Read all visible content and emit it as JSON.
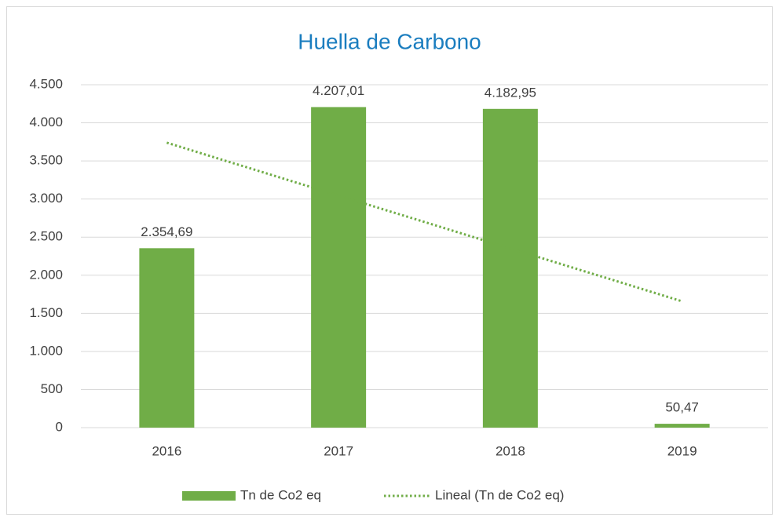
{
  "chart_data": {
    "type": "bar",
    "title": "Huella de Carbono",
    "categories": [
      "2016",
      "2017",
      "2018",
      "2019"
    ],
    "series": [
      {
        "name": "Tn de Co2 eq",
        "type": "bar",
        "color": "#70ad47",
        "values": [
          2354.69,
          4207.01,
          4182.95,
          50.47
        ],
        "value_labels": [
          "2.354,69",
          "4.207,01",
          "4.182,95",
          "50,47"
        ]
      },
      {
        "name": "Lineal (Tn de Co2 eq)",
        "type": "line",
        "color": "#70ad47",
        "dotted": true,
        "values": [
          3739.29,
          3045.96,
          2351.61,
          1657.77
        ]
      }
    ],
    "ylim": [
      0,
      4500
    ],
    "yticks": [
      0,
      500,
      {
        "value": 1000,
        "label": "1.000"
      },
      {
        "value": 1500,
        "label": "1.500"
      },
      {
        "value": 2000,
        "label": "2.000"
      },
      {
        "value": 2500,
        "label": "2.500"
      },
      {
        "value": 3000,
        "label": "3.000"
      },
      {
        "value": 3500,
        "label": "3.500"
      },
      {
        "value": 4000,
        "label": "4.000"
      },
      {
        "value": 4500,
        "label": "4.500"
      }
    ],
    "grid": true,
    "legend": "bottom"
  }
}
